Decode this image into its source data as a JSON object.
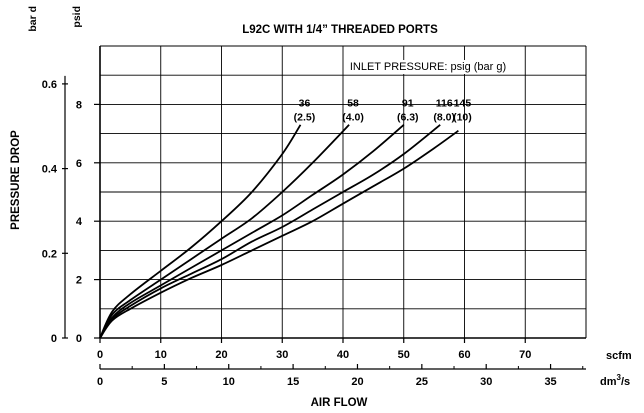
{
  "chart_data": {
    "type": "line",
    "title": "L92C WITH 1/4” THREADED PORTS",
    "xlabel": "AIR FLOW",
    "ylabel": "PRESSURE DROP",
    "x_units_primary": "scfm",
    "x_units_secondary": "dm³/s",
    "x_units_secondary_base": "dm",
    "x_units_secondary_exp": "3",
    "x_units_secondary_tail": "/s",
    "y_units_primary": "psid",
    "y_units_secondary": "bar d",
    "xlim": [
      0,
      80
    ],
    "ylim": [
      0,
      10
    ],
    "grid": true,
    "x_ticks_scfm": [
      "0",
      "10",
      "20",
      "30",
      "40",
      "50",
      "60",
      "70"
    ],
    "x_ticks_scfm_values": [
      0,
      10,
      20,
      30,
      40,
      50,
      60,
      70
    ],
    "x_ticks_dm3s": [
      "0",
      "5",
      "10",
      "15",
      "20",
      "25",
      "30",
      "35"
    ],
    "x_ticks_dm3s_values": [
      0,
      5,
      10,
      15,
      20,
      25,
      30,
      35
    ],
    "y_ticks_psid": [
      "0",
      "2",
      "4",
      "6",
      "8"
    ],
    "y_ticks_psid_values": [
      0,
      2,
      4,
      6,
      8
    ],
    "y_ticks_bar": [
      "0",
      "0.2",
      "0.4",
      "0.6"
    ],
    "y_ticks_bar_values": [
      0,
      0.2,
      0.4,
      0.6
    ],
    "legend_title": "INLET PRESSURE: psig (bar g)",
    "series": [
      {
        "name": "36",
        "name_bar": "(2.5)",
        "x": [
          0,
          2,
          5,
          10,
          15,
          20,
          25,
          30,
          33
        ],
        "y": [
          0,
          0.9,
          1.5,
          2.3,
          3.1,
          4.0,
          5.0,
          6.3,
          7.3
        ]
      },
      {
        "name": "58",
        "name_bar": "(4.0)",
        "x": [
          0,
          2,
          5,
          10,
          15,
          20,
          25,
          30,
          35,
          41
        ],
        "y": [
          0,
          0.8,
          1.3,
          2.0,
          2.7,
          3.4,
          4.1,
          5.0,
          6.0,
          7.3
        ]
      },
      {
        "name": "91",
        "name_bar": "(6.3)",
        "x": [
          0,
          2,
          5,
          10,
          15,
          20,
          25,
          30,
          35,
          40,
          45,
          50
        ],
        "y": [
          0,
          0.7,
          1.2,
          1.8,
          2.4,
          3.0,
          3.6,
          4.2,
          4.9,
          5.6,
          6.4,
          7.3
        ]
      },
      {
        "name": "116",
        "name_bar": "(8.0)",
        "x": [
          0,
          2,
          5,
          10,
          15,
          20,
          25,
          30,
          35,
          40,
          45,
          50,
          56
        ],
        "y": [
          0,
          0.65,
          1.1,
          1.7,
          2.2,
          2.7,
          3.3,
          3.8,
          4.4,
          5.0,
          5.6,
          6.3,
          7.3
        ]
      },
      {
        "name": "145",
        "name_bar": "(10)",
        "x": [
          0,
          2,
          5,
          10,
          15,
          20,
          25,
          30,
          35,
          40,
          45,
          50,
          55,
          59
        ],
        "y": [
          0,
          0.6,
          1.0,
          1.55,
          2.05,
          2.5,
          3.0,
          3.5,
          4.0,
          4.6,
          5.2,
          5.8,
          6.5,
          7.1
        ]
      }
    ]
  }
}
